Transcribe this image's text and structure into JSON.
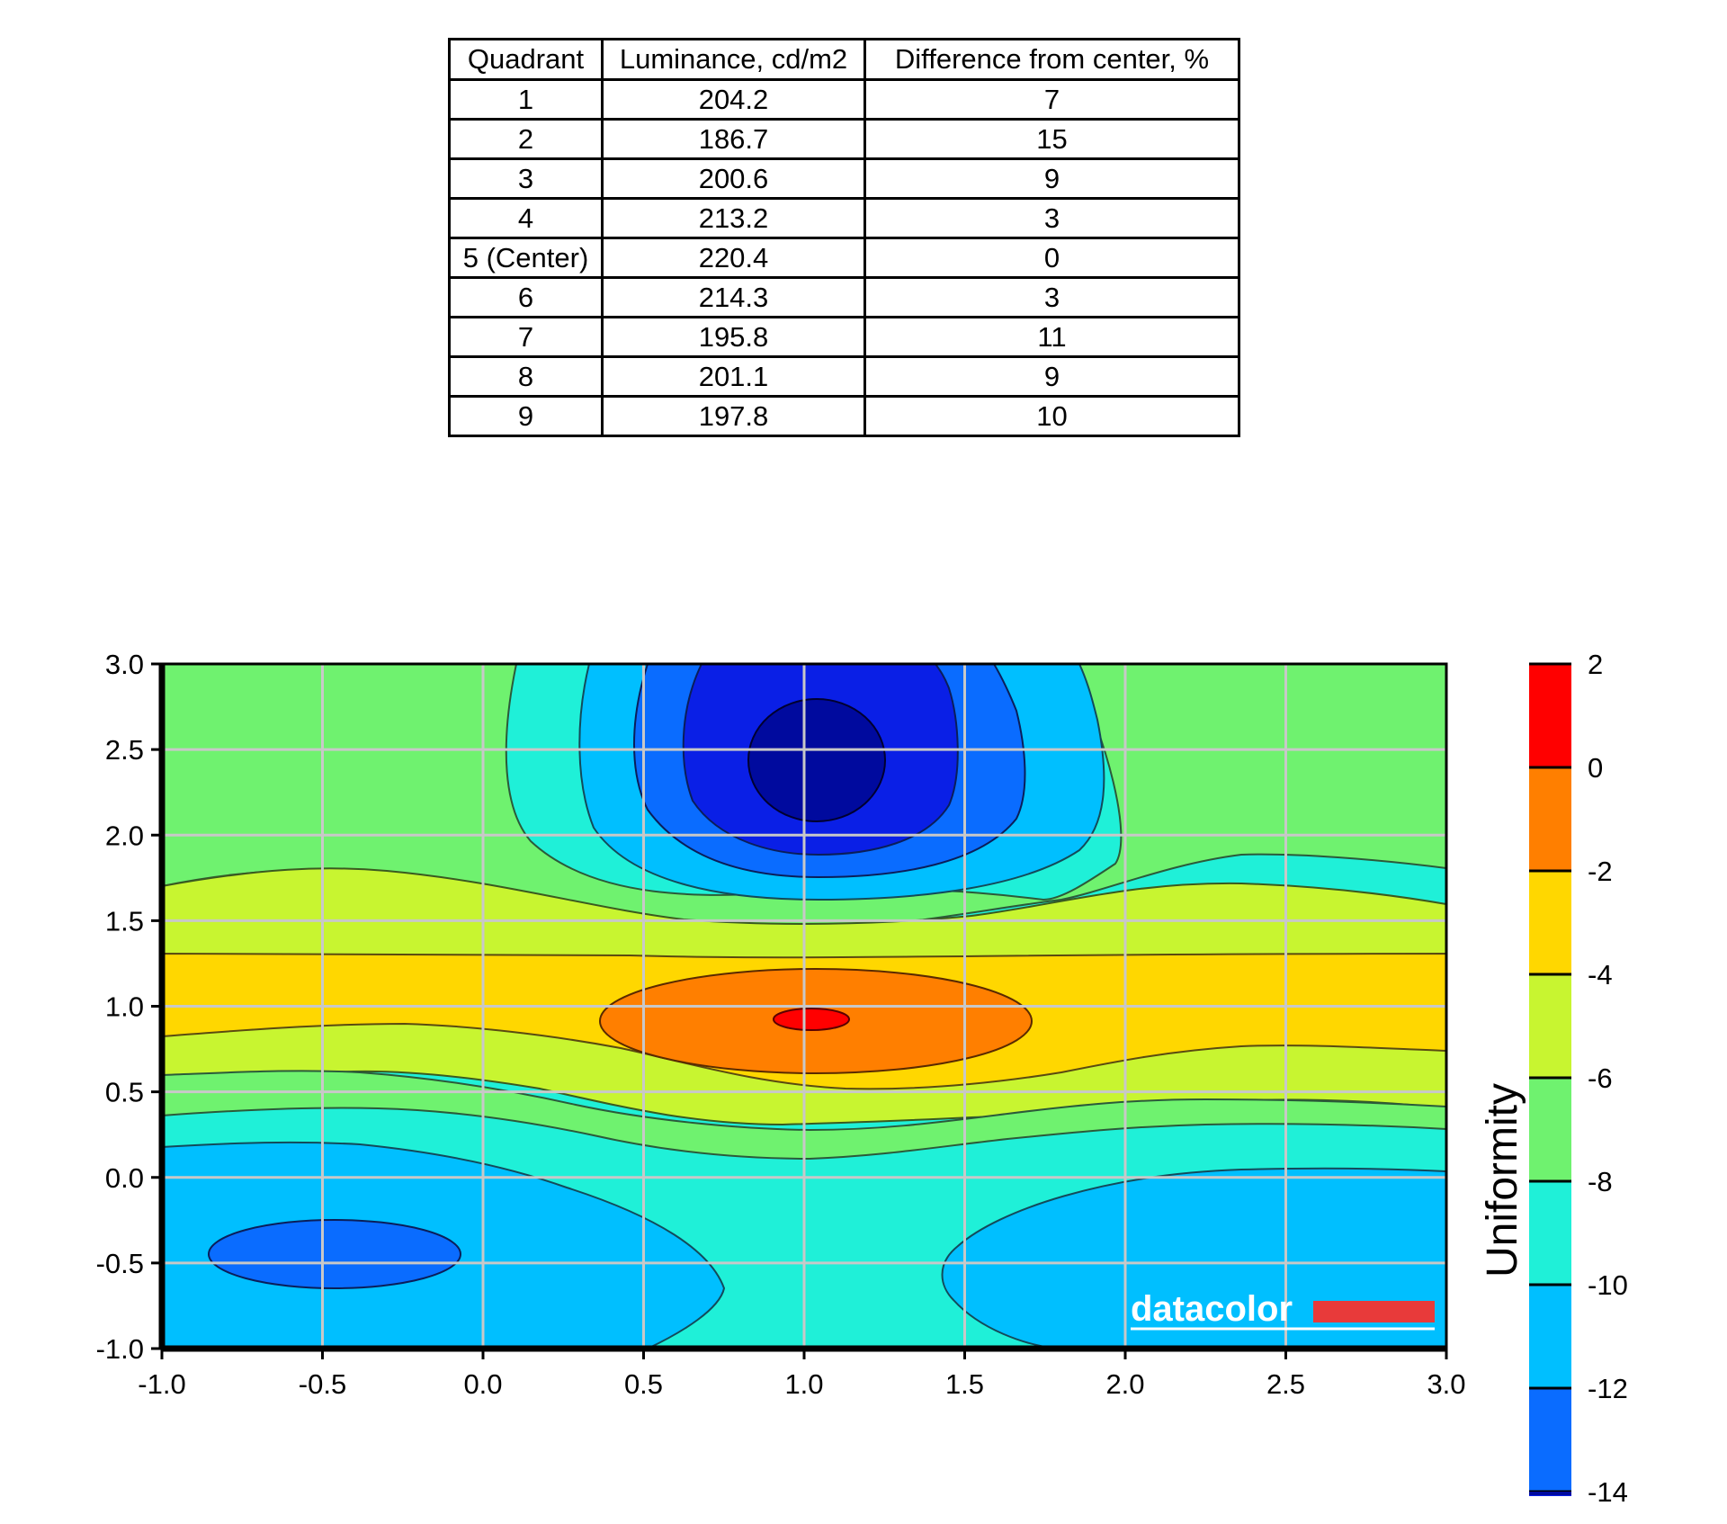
{
  "table": {
    "headers": [
      "Quadrant",
      "Luminance, cd/m2",
      "Difference from center, %"
    ],
    "rows": [
      [
        "1",
        "204.2",
        "7"
      ],
      [
        "2",
        "186.7",
        "15"
      ],
      [
        "3",
        "200.6",
        "9"
      ],
      [
        "4",
        "213.2",
        "3"
      ],
      [
        "5 (Center)",
        "220.4",
        "0"
      ],
      [
        "6",
        "214.3",
        "3"
      ],
      [
        "7",
        "195.8",
        "11"
      ],
      [
        "8",
        "201.1",
        "9"
      ],
      [
        "9",
        "197.8",
        "10"
      ]
    ]
  },
  "chart_data": {
    "type": "contour",
    "xlim": [
      -1.0,
      3.0
    ],
    "ylim": [
      -1.0,
      3.0
    ],
    "x_ticks": [
      "-1.0",
      "-0.5",
      "0.0",
      "0.5",
      "1.0",
      "1.5",
      "2.0",
      "2.5",
      "3.0"
    ],
    "y_ticks": [
      "-1.0",
      "-0.5",
      "0.0",
      "0.5",
      "1.0",
      "1.5",
      "2.0",
      "2.5",
      "3.0"
    ],
    "grid": true,
    "colorbar": {
      "title": "Uniformity",
      "levels": [
        "2",
        "0",
        "-2",
        "-4",
        "-6",
        "-8",
        "-10",
        "-12",
        "-14"
      ],
      "colors": [
        "#ff0000",
        "#ff7f00",
        "#ffd700",
        "#c8f530",
        "#6ff26f",
        "#1ff0d8",
        "#00bfff",
        "#0a6cff",
        "#0a1fe6",
        "#000a9e"
      ]
    },
    "regions": [
      {
        "label": "maximum",
        "x": 1.0,
        "y": 0.95,
        "value": 2
      },
      {
        "label": "minimum",
        "x": 1.0,
        "y": 2.45,
        "value": -15
      },
      {
        "label": "local minimum",
        "x": -0.45,
        "y": -0.45,
        "value": -13
      }
    ],
    "watermark": "datacolor"
  }
}
